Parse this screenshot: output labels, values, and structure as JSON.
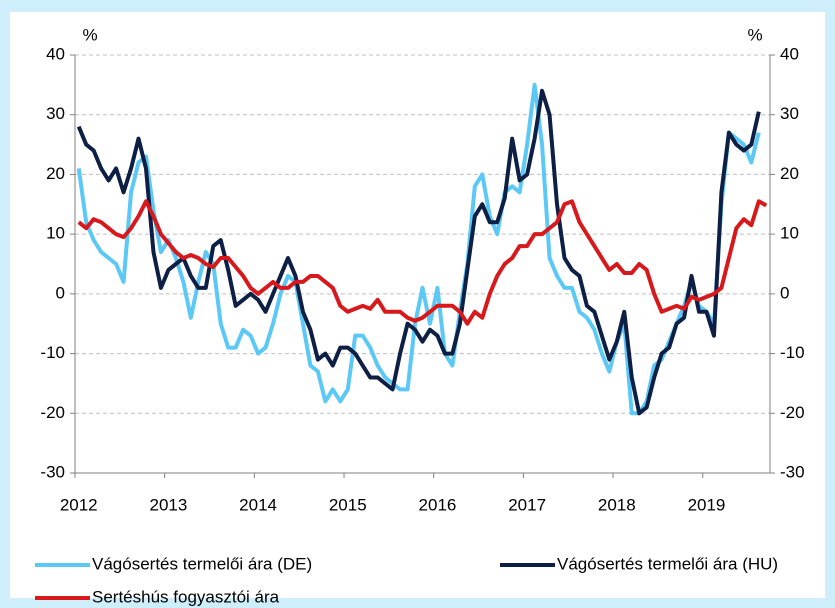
{
  "chart_data": {
    "type": "line",
    "ylabel": "%",
    "y2label": "%",
    "categories": [
      "2012",
      null,
      null,
      null,
      null,
      null,
      null,
      null,
      null,
      null,
      null,
      null,
      "2013",
      null,
      null,
      null,
      null,
      null,
      null,
      null,
      null,
      null,
      null,
      null,
      "2014",
      null,
      null,
      null,
      null,
      null,
      null,
      null,
      null,
      null,
      null,
      null,
      "2015",
      null,
      null,
      null,
      null,
      null,
      null,
      null,
      null,
      null,
      null,
      null,
      "2016",
      null,
      null,
      null,
      null,
      null,
      null,
      null,
      null,
      null,
      null,
      null,
      "2017",
      null,
      null,
      null,
      null,
      null,
      null,
      null,
      null,
      null,
      null,
      null,
      "2018",
      null,
      null,
      null,
      null,
      null,
      null,
      null,
      null,
      null,
      null,
      null,
      "2019",
      null,
      null,
      null,
      null,
      null,
      null,
      null,
      null
    ],
    "ylim": [
      -30,
      40
    ],
    "yticks": [
      -30,
      -20,
      -10,
      0,
      10,
      20,
      30,
      40
    ],
    "y2lim": [
      -30,
      40
    ],
    "y2ticks": [
      -30,
      -20,
      -10,
      0,
      10,
      20,
      30,
      40
    ],
    "grid": true,
    "legend": "bottom",
    "series": [
      {
        "name": "Vágósertés termelői ára (DE)",
        "color": "#5bc8f5",
        "values": [
          21,
          12,
          9,
          7,
          6,
          5,
          2,
          17,
          22,
          23,
          14,
          7,
          9,
          6,
          2,
          -4,
          2,
          7,
          5,
          -5,
          -9,
          -9,
          -6,
          -7,
          -10,
          -9,
          -5,
          0,
          3,
          2,
          -5,
          -12,
          -13,
          -18,
          -16,
          -18,
          -16,
          -7,
          -7,
          -9,
          -12,
          -14,
          -15,
          -16,
          -16,
          -5,
          1,
          -5,
          1,
          -10,
          -12,
          -3,
          5,
          18,
          20,
          13,
          10,
          17,
          18,
          17,
          25,
          35,
          25,
          6,
          3,
          1,
          1,
          -3,
          -4,
          -6,
          -10,
          -13,
          -8,
          -5,
          -20,
          -20,
          -18,
          -12,
          -11,
          -8,
          -5,
          -2,
          2,
          -2,
          -3,
          -5,
          15,
          27,
          26,
          25,
          22,
          27,
          null
        ]
      },
      {
        "name": "Vágósertés termelői ára (HU)",
        "color": "#0d1f45",
        "values": [
          28,
          25,
          24,
          21,
          19,
          21,
          17,
          21,
          26,
          21,
          7,
          1,
          4,
          5,
          6,
          3,
          1,
          1,
          8,
          9,
          4,
          -2,
          -1,
          0,
          -1,
          -3,
          0,
          3,
          6,
          3,
          -3,
          -6,
          -11,
          -10,
          -12,
          -9,
          -9,
          -10,
          -12,
          -14,
          -14,
          -15,
          -16,
          -10,
          -5,
          -6,
          -8,
          -6,
          -7,
          -10,
          -10,
          -5,
          4,
          13,
          15,
          12,
          12,
          16,
          26,
          19,
          20,
          26,
          34,
          30,
          15,
          6,
          4,
          3,
          -2,
          -3,
          -7,
          -11,
          -8,
          -3,
          -14,
          -20,
          -19,
          -14,
          -10,
          -9,
          -5,
          -4,
          3,
          -3,
          -3,
          -7,
          17,
          27,
          25,
          24,
          25,
          30.5,
          null
        ]
      },
      {
        "name": "Sertéshús fogyasztói ára",
        "color": "#d7191c",
        "values": [
          12,
          11,
          12.5,
          12,
          11,
          10,
          9.5,
          11,
          13,
          15.5,
          13,
          10,
          8.5,
          7,
          6,
          6.5,
          6,
          5,
          4.5,
          6,
          6,
          4.5,
          3,
          1,
          0,
          1,
          2,
          1,
          1,
          2,
          2,
          3,
          3,
          2,
          1,
          -2,
          -3,
          -2.5,
          -2,
          -2.5,
          -1,
          -3,
          -3,
          -3,
          -4,
          -4.5,
          -4,
          -3,
          -2,
          -2,
          -2,
          -3,
          -5,
          -3,
          -4,
          0,
          3,
          5,
          6,
          8,
          8,
          10,
          10,
          11,
          12,
          15,
          15.5,
          12,
          10,
          8,
          6,
          4,
          5,
          3.5,
          3.5,
          5,
          4,
          0,
          -3,
          -2.5,
          -2,
          -2.5,
          -0.5,
          -1,
          -0.5,
          0,
          1,
          6,
          11,
          12.5,
          11.5,
          15.5,
          14.8
        ]
      }
    ]
  }
}
